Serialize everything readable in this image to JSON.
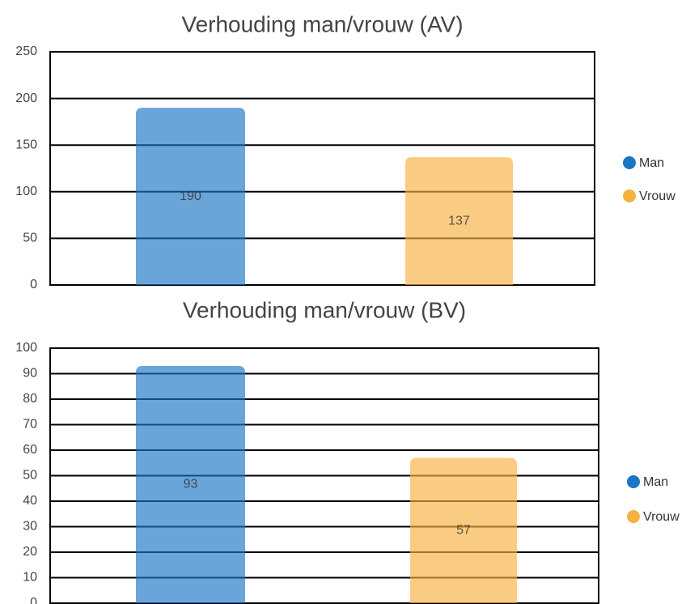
{
  "chart_data": [
    {
      "type": "bar",
      "title": "Verhouding man/vrouw (AV)",
      "series": [
        {
          "name": "Man",
          "color": "#1a75c4",
          "values": [
            190
          ]
        },
        {
          "name": "Vrouw",
          "color": "#f7b140",
          "values": [
            137
          ]
        }
      ],
      "ylim": [
        0,
        250
      ],
      "yticks": [
        0,
        50,
        100,
        150,
        200,
        250
      ],
      "grid": true,
      "legend": "right"
    },
    {
      "type": "bar",
      "title": "Verhouding man/vrouw (BV)",
      "series": [
        {
          "name": "Man",
          "color": "#1a75c4",
          "values": [
            93
          ]
        },
        {
          "name": "Vrouw",
          "color": "#f7b140",
          "values": [
            57
          ]
        }
      ],
      "ylim": [
        0,
        100
      ],
      "yticks": [
        0,
        10,
        20,
        30,
        40,
        50,
        60,
        70,
        80,
        90,
        100
      ],
      "grid": true,
      "legend": "right"
    }
  ]
}
